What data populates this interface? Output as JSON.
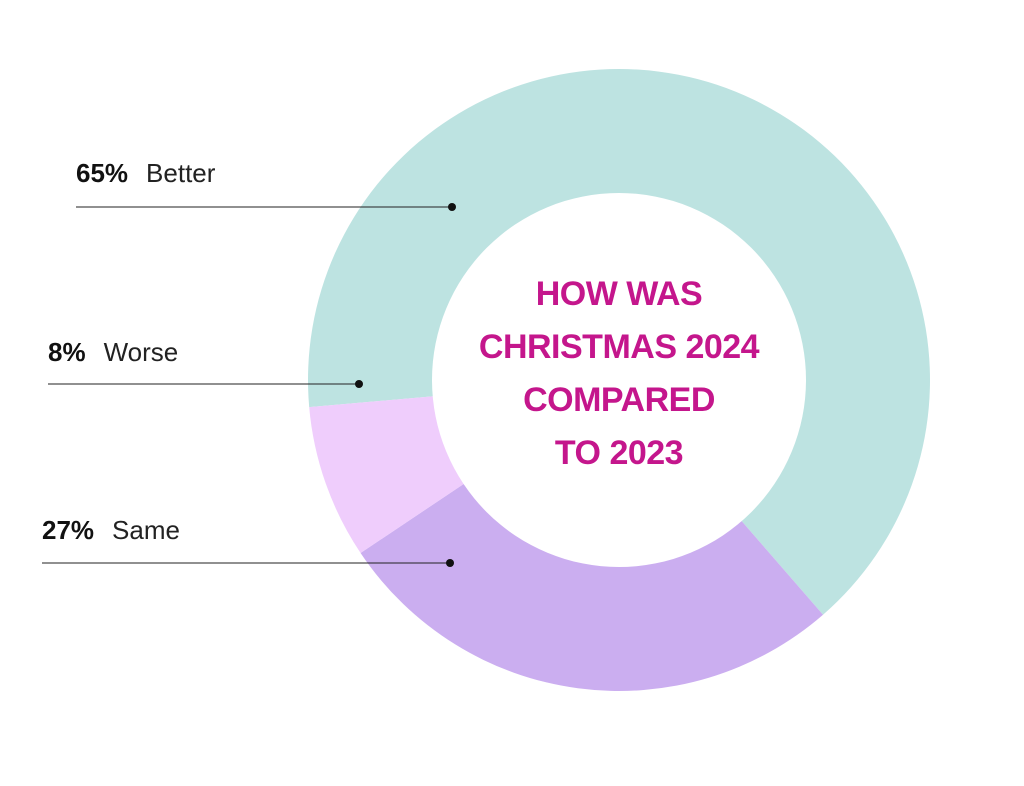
{
  "chart_data": {
    "type": "pie",
    "title_lines": [
      "HOW WAS",
      "CHRISTMAS 2024",
      "COMPARED",
      "TO 2023"
    ],
    "slices": [
      {
        "label": "Better",
        "value": 65,
        "value_label": "65%",
        "color": "#bde3e1"
      },
      {
        "label": "Same",
        "value": 27,
        "value_label": "27%",
        "color": "#cbaef0"
      },
      {
        "label": "Worse",
        "value": 8,
        "value_label": "8%",
        "color": "#efcdfc"
      }
    ],
    "donut": true,
    "title_color": "#c4168c",
    "legend_placement": "left"
  }
}
